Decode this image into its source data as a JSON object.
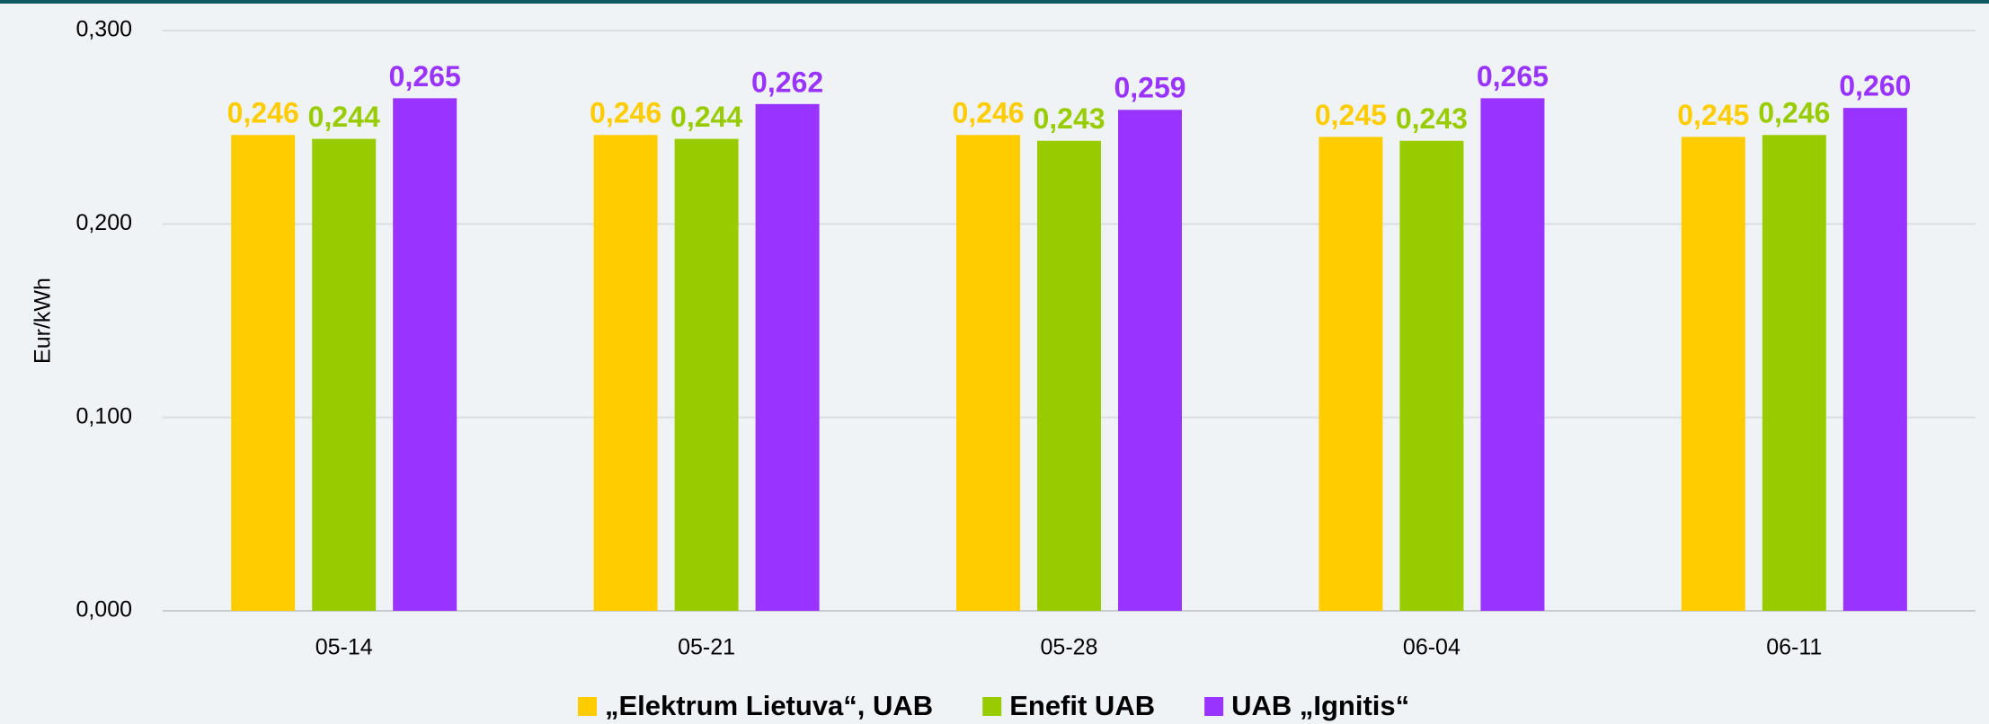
{
  "chart_data": {
    "type": "bar",
    "y_label": "Eur/kWh",
    "categories": [
      "05-14",
      "05-21",
      "05-28",
      "06-04",
      "06-11"
    ],
    "series": [
      {
        "name": "„Elektrum Lietuva“, UAB",
        "color": "#ffcc00",
        "values": [
          0.246,
          0.246,
          0.246,
          0.245,
          0.245
        ],
        "value_labels": [
          "0,246",
          "0,246",
          "0,246",
          "0,245",
          "0,245"
        ]
      },
      {
        "name": "Enefit UAB",
        "color": "#99cc00",
        "values": [
          0.244,
          0.244,
          0.243,
          0.243,
          0.246
        ],
        "value_labels": [
          "0,244",
          "0,244",
          "0,243",
          "0,243",
          "0,246"
        ]
      },
      {
        "name": "UAB „Ignitis“",
        "color": "#9933ff",
        "values": [
          0.265,
          0.262,
          0.259,
          0.265,
          0.26
        ],
        "value_labels": [
          "0,265",
          "0,262",
          "0,259",
          "0,265",
          "0,260"
        ]
      }
    ],
    "ylim": [
      0,
      0.3
    ],
    "yticks": [
      {
        "value": 0,
        "label": "0,000"
      },
      {
        "value": 0.1,
        "label": "0,100"
      },
      {
        "value": 0.2,
        "label": "0,200"
      },
      {
        "value": 0.3,
        "label": "0,300"
      }
    ],
    "grid": true,
    "legend": "bottom"
  }
}
